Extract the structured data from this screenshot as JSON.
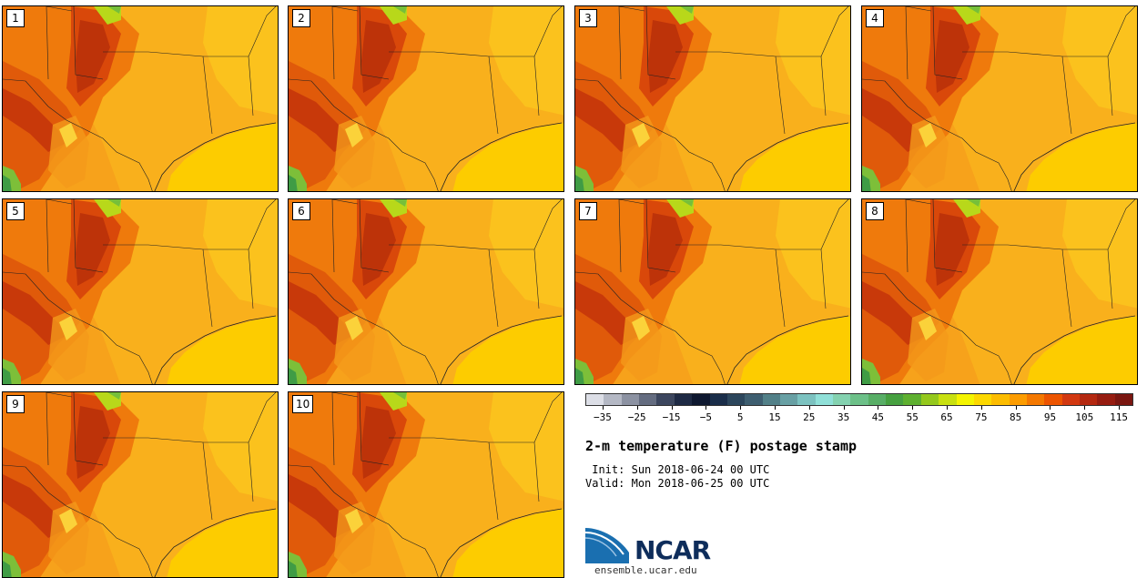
{
  "figure": {
    "title": "2-m temperature (F) postage stamp",
    "init_label": " Init:",
    "init_value": "Sun 2018-06-24 00 UTC",
    "valid_label": "Valid:",
    "valid_value": "Mon 2018-06-25 00 UTC"
  },
  "members": [
    "1",
    "2",
    "3",
    "4",
    "5",
    "6",
    "7",
    "8",
    "9",
    "10"
  ],
  "colorbar": {
    "tick_labels": [
      "−35",
      "−25",
      "−15",
      "−5",
      "5",
      "15",
      "25",
      "35",
      "45",
      "55",
      "65",
      "75",
      "85",
      "95",
      "105",
      "115"
    ],
    "range": [
      -40,
      120
    ],
    "interval": 5,
    "colors": [
      "#dcdee6",
      "#b4b8c4",
      "#8c92a2",
      "#646c80",
      "#3c465e",
      "#1e2a44",
      "#0e1830",
      "#1a2e4a",
      "#2c465c",
      "#3e5e70",
      "#528088",
      "#68a0a4",
      "#7cc2c0",
      "#90e0d8",
      "#84d2b0",
      "#6cc088",
      "#58ae66",
      "#46a040",
      "#5eb030",
      "#94c81c",
      "#c8e010",
      "#f4f400",
      "#fcd800",
      "#fcbc00",
      "#fc9c00",
      "#f47800",
      "#ec5400",
      "#d23810",
      "#b42810",
      "#961c10",
      "#7a1610"
    ]
  },
  "branding": {
    "logo_text": "NCAR",
    "url": "ensemble.ucar.edu"
  }
}
